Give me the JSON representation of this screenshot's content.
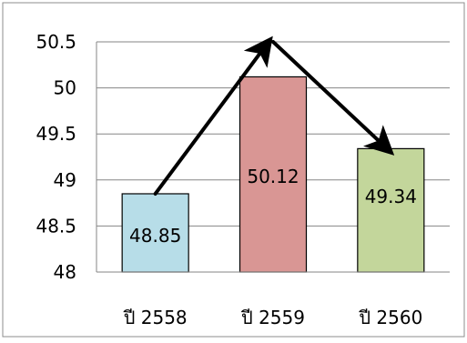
{
  "chart_data": {
    "type": "bar",
    "title": "",
    "xlabel": "",
    "ylabel": "",
    "categories": [
      "ปี 2558",
      "ปี 2559",
      "ปี 2560"
    ],
    "values": [
      48.85,
      50.12,
      49.34
    ],
    "data_labels": [
      "48.85",
      "50.12",
      "49.34"
    ],
    "bar_colors": [
      "#b7dde8",
      "#d99694",
      "#c3d69b"
    ],
    "bar_outline": "#000000",
    "ylim": [
      48,
      50.5
    ],
    "yticks": [
      48,
      48.5,
      49,
      49.5,
      50,
      50.5
    ],
    "ytick_labels": [
      "48",
      "48.5",
      "49",
      "49.5",
      "50",
      "50.5"
    ],
    "grid": true,
    "legend": "none",
    "annotation_arrows": [
      {
        "from_category": 0,
        "from_value": 48.85,
        "to_category": 1,
        "to_value": 50.5,
        "color": "#000000"
      },
      {
        "from_category": 1,
        "from_value": 50.5,
        "to_category": 2,
        "to_value": 49.34,
        "color": "#000000"
      }
    ]
  }
}
